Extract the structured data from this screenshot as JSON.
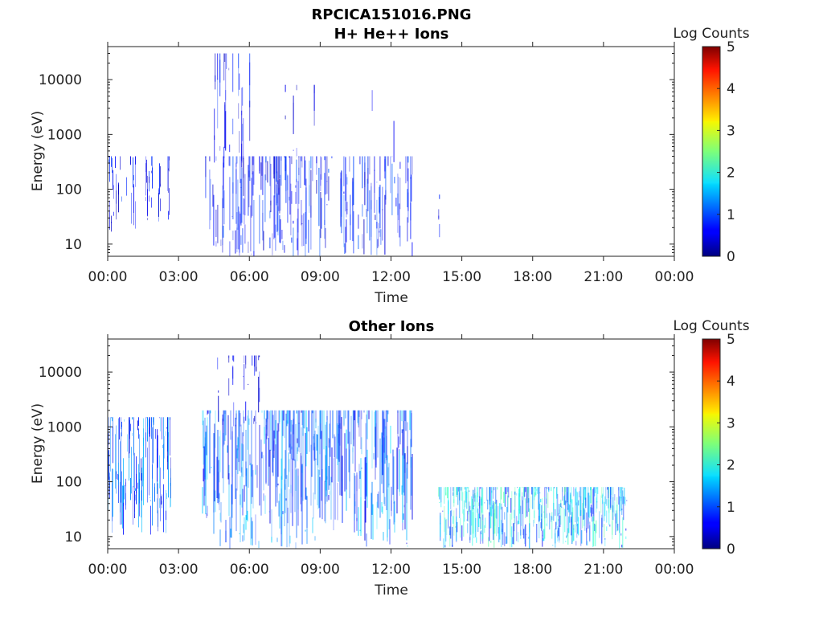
{
  "figure": {
    "filename": "RPCICA151016.PNG"
  },
  "chart_data": [
    {
      "type": "heatmap",
      "title": "H+ He++ Ions",
      "xlabel": "Time",
      "ylabel": "Energy (eV)",
      "x_ticks": [
        "00:00",
        "03:00",
        "06:00",
        "09:00",
        "12:00",
        "15:00",
        "18:00",
        "21:00",
        "00:00"
      ],
      "xlim_hours": [
        0,
        24
      ],
      "y_scale": "log",
      "y_ticks": [
        "10",
        "100",
        "1000",
        "10000"
      ],
      "ylim": [
        6,
        40000
      ],
      "colorbar": {
        "label": "Log Counts",
        "ticks": [
          "0",
          "1",
          "2",
          "3",
          "4",
          "5"
        ],
        "range": [
          0,
          5
        ],
        "colormap": "jet"
      },
      "activity": [
        {
          "start_h": 0.0,
          "end_h": 1.2,
          "e_min": 15,
          "e_max": 400,
          "level": 0.6,
          "density": 0.45
        },
        {
          "start_h": 1.6,
          "end_h": 2.6,
          "e_min": 25,
          "e_max": 400,
          "level": 0.6,
          "density": 0.4
        },
        {
          "start_h": 4.1,
          "end_h": 12.9,
          "e_min": 6,
          "e_max": 400,
          "level": 0.7,
          "density": 0.55
        },
        {
          "start_h": 4.5,
          "end_h": 6.0,
          "e_min": 200,
          "e_max": 30000,
          "level": 0.6,
          "density": 0.35
        },
        {
          "start_h": 7.0,
          "end_h": 12.5,
          "e_min": 300,
          "e_max": 8000,
          "level": 0.4,
          "density": 0.06
        },
        {
          "start_h": 14.0,
          "end_h": 14.06,
          "e_min": 6,
          "e_max": 80,
          "level": 0.8,
          "density": 1.0
        }
      ]
    },
    {
      "type": "heatmap",
      "title": "Other Ions",
      "xlabel": "Time",
      "ylabel": "Energy (eV)",
      "x_ticks": [
        "00:00",
        "03:00",
        "06:00",
        "09:00",
        "12:00",
        "15:00",
        "18:00",
        "21:00",
        "00:00"
      ],
      "xlim_hours": [
        0,
        24
      ],
      "y_scale": "log",
      "y_ticks": [
        "10",
        "100",
        "1000",
        "10000"
      ],
      "ylim": [
        6,
        40000
      ],
      "colorbar": {
        "label": "Log Counts",
        "ticks": [
          "0",
          "1",
          "2",
          "3",
          "4",
          "5"
        ],
        "range": [
          0,
          5
        ],
        "colormap": "jet"
      },
      "activity": [
        {
          "start_h": 0.0,
          "end_h": 2.7,
          "e_min": 10,
          "e_max": 1500,
          "level": 1.0,
          "density": 0.8
        },
        {
          "start_h": 4.0,
          "end_h": 12.9,
          "e_min": 6,
          "e_max": 2000,
          "level": 1.1,
          "density": 0.85
        },
        {
          "start_h": 4.5,
          "end_h": 6.5,
          "e_min": 1000,
          "e_max": 20000,
          "level": 0.5,
          "density": 0.3
        },
        {
          "start_h": 14.0,
          "end_h": 22.0,
          "e_min": 6,
          "e_max": 80,
          "level": 1.5,
          "density": 0.95
        }
      ]
    }
  ]
}
